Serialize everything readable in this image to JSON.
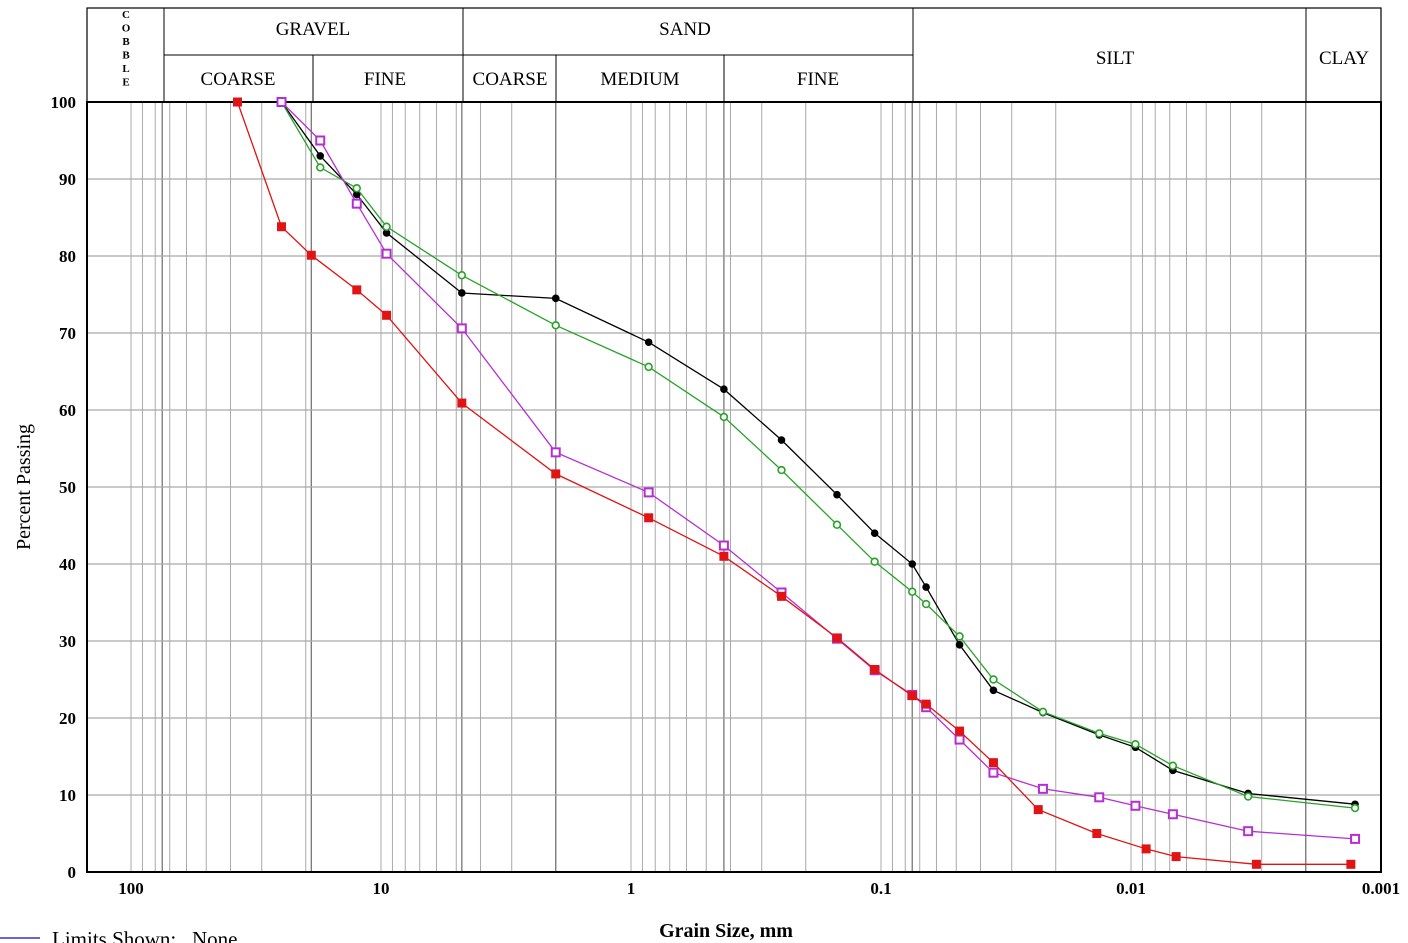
{
  "header": {
    "cobble": "COBBLE",
    "gravel": "GRAVEL",
    "sand": "SAND",
    "silt": "SILT",
    "clay": "CLAY",
    "gravel_coarse": "COARSE",
    "gravel_fine": "FINE",
    "sand_coarse": "COARSE",
    "sand_medium": "MEDIUM",
    "sand_fine": "FINE"
  },
  "legend": {
    "limits": "Limits Shown:   None"
  },
  "chart_data": {
    "type": "line",
    "title": "",
    "xlabel": "Grain Size, mm",
    "ylabel": "Percent Passing",
    "xscale": "log",
    "x_reversed": true,
    "xlim": [
      100,
      0.001
    ],
    "ylim": [
      0,
      100
    ],
    "x_tick_labels": [
      "100",
      "10",
      "1",
      "0.1",
      "0.01",
      "0.001"
    ],
    "y_tick_labels": [
      "0",
      "10",
      "20",
      "30",
      "40",
      "50",
      "60",
      "70",
      "80",
      "90",
      "100"
    ],
    "grid": true,
    "boundaries": {
      "cobble_gravel": 75,
      "gravel_coarse_fine": 19,
      "gravel_sand": 4.75,
      "sand_coarse_medium": 2.0,
      "sand_medium_fine": 0.425,
      "sand_silt": 0.075,
      "silt_clay": 0.002
    },
    "series": [
      {
        "color": "#000000",
        "marker": "filled-circle",
        "x": [
          25,
          17.5,
          12.5,
          9.5,
          4.75,
          2,
          0.85,
          0.425,
          0.25,
          0.15,
          0.106,
          0.075,
          0.066,
          0.0485,
          0.0355,
          0.0225,
          0.0134,
          0.0096,
          0.0068,
          0.0034,
          0.00127
        ],
        "values": [
          100,
          93,
          88,
          83,
          75.2,
          74.5,
          68.8,
          62.7,
          56.1,
          49,
          44,
          40,
          37,
          29.5,
          23.6,
          20.7,
          17.8,
          16.2,
          13.2,
          10.2,
          8.8
        ]
      },
      {
        "color": "#27a327",
        "marker": "hollow-circle",
        "x": [
          25,
          17.5,
          12.5,
          9.5,
          4.75,
          2,
          0.85,
          0.425,
          0.25,
          0.15,
          0.106,
          0.075,
          0.066,
          0.0485,
          0.0355,
          0.0225,
          0.0134,
          0.0096,
          0.0068,
          0.0034,
          0.00127
        ],
        "values": [
          100,
          91.5,
          88.8,
          83.8,
          77.5,
          71,
          65.6,
          59.1,
          52.2,
          45.1,
          40.3,
          36.4,
          34.8,
          30.6,
          25,
          20.8,
          18,
          16.6,
          13.8,
          9.8,
          8.3
        ]
      },
      {
        "color": "#b62ed3",
        "marker": "hollow-square",
        "x": [
          25,
          17.5,
          12.5,
          9.5,
          4.75,
          2,
          0.85,
          0.425,
          0.25,
          0.15,
          0.106,
          0.075,
          0.066,
          0.0485,
          0.0355,
          0.0225,
          0.0134,
          0.0096,
          0.0068,
          0.0034,
          0.00127
        ],
        "values": [
          100,
          95,
          86.8,
          80.3,
          70.6,
          54.5,
          49.3,
          42.4,
          36.3,
          30.3,
          26.2,
          23,
          21.4,
          17.2,
          12.9,
          10.8,
          9.7,
          8.6,
          7.5,
          5.3,
          4.3
        ]
      },
      {
        "color": "#e01414",
        "marker": "filled-square",
        "x": [
          37.5,
          25,
          19,
          12.5,
          9.5,
          4.75,
          2,
          0.85,
          0.425,
          0.25,
          0.15,
          0.106,
          0.075,
          0.066,
          0.0485,
          0.0355,
          0.0235,
          0.0137,
          0.0087,
          0.0066,
          0.00315,
          0.00132
        ],
        "values": [
          100,
          83.8,
          80.1,
          75.6,
          72.3,
          60.9,
          51.7,
          46,
          41,
          35.8,
          30.4,
          26.3,
          22.9,
          21.8,
          18.3,
          14.2,
          8.1,
          5,
          3,
          2,
          1,
          1
        ]
      }
    ]
  }
}
